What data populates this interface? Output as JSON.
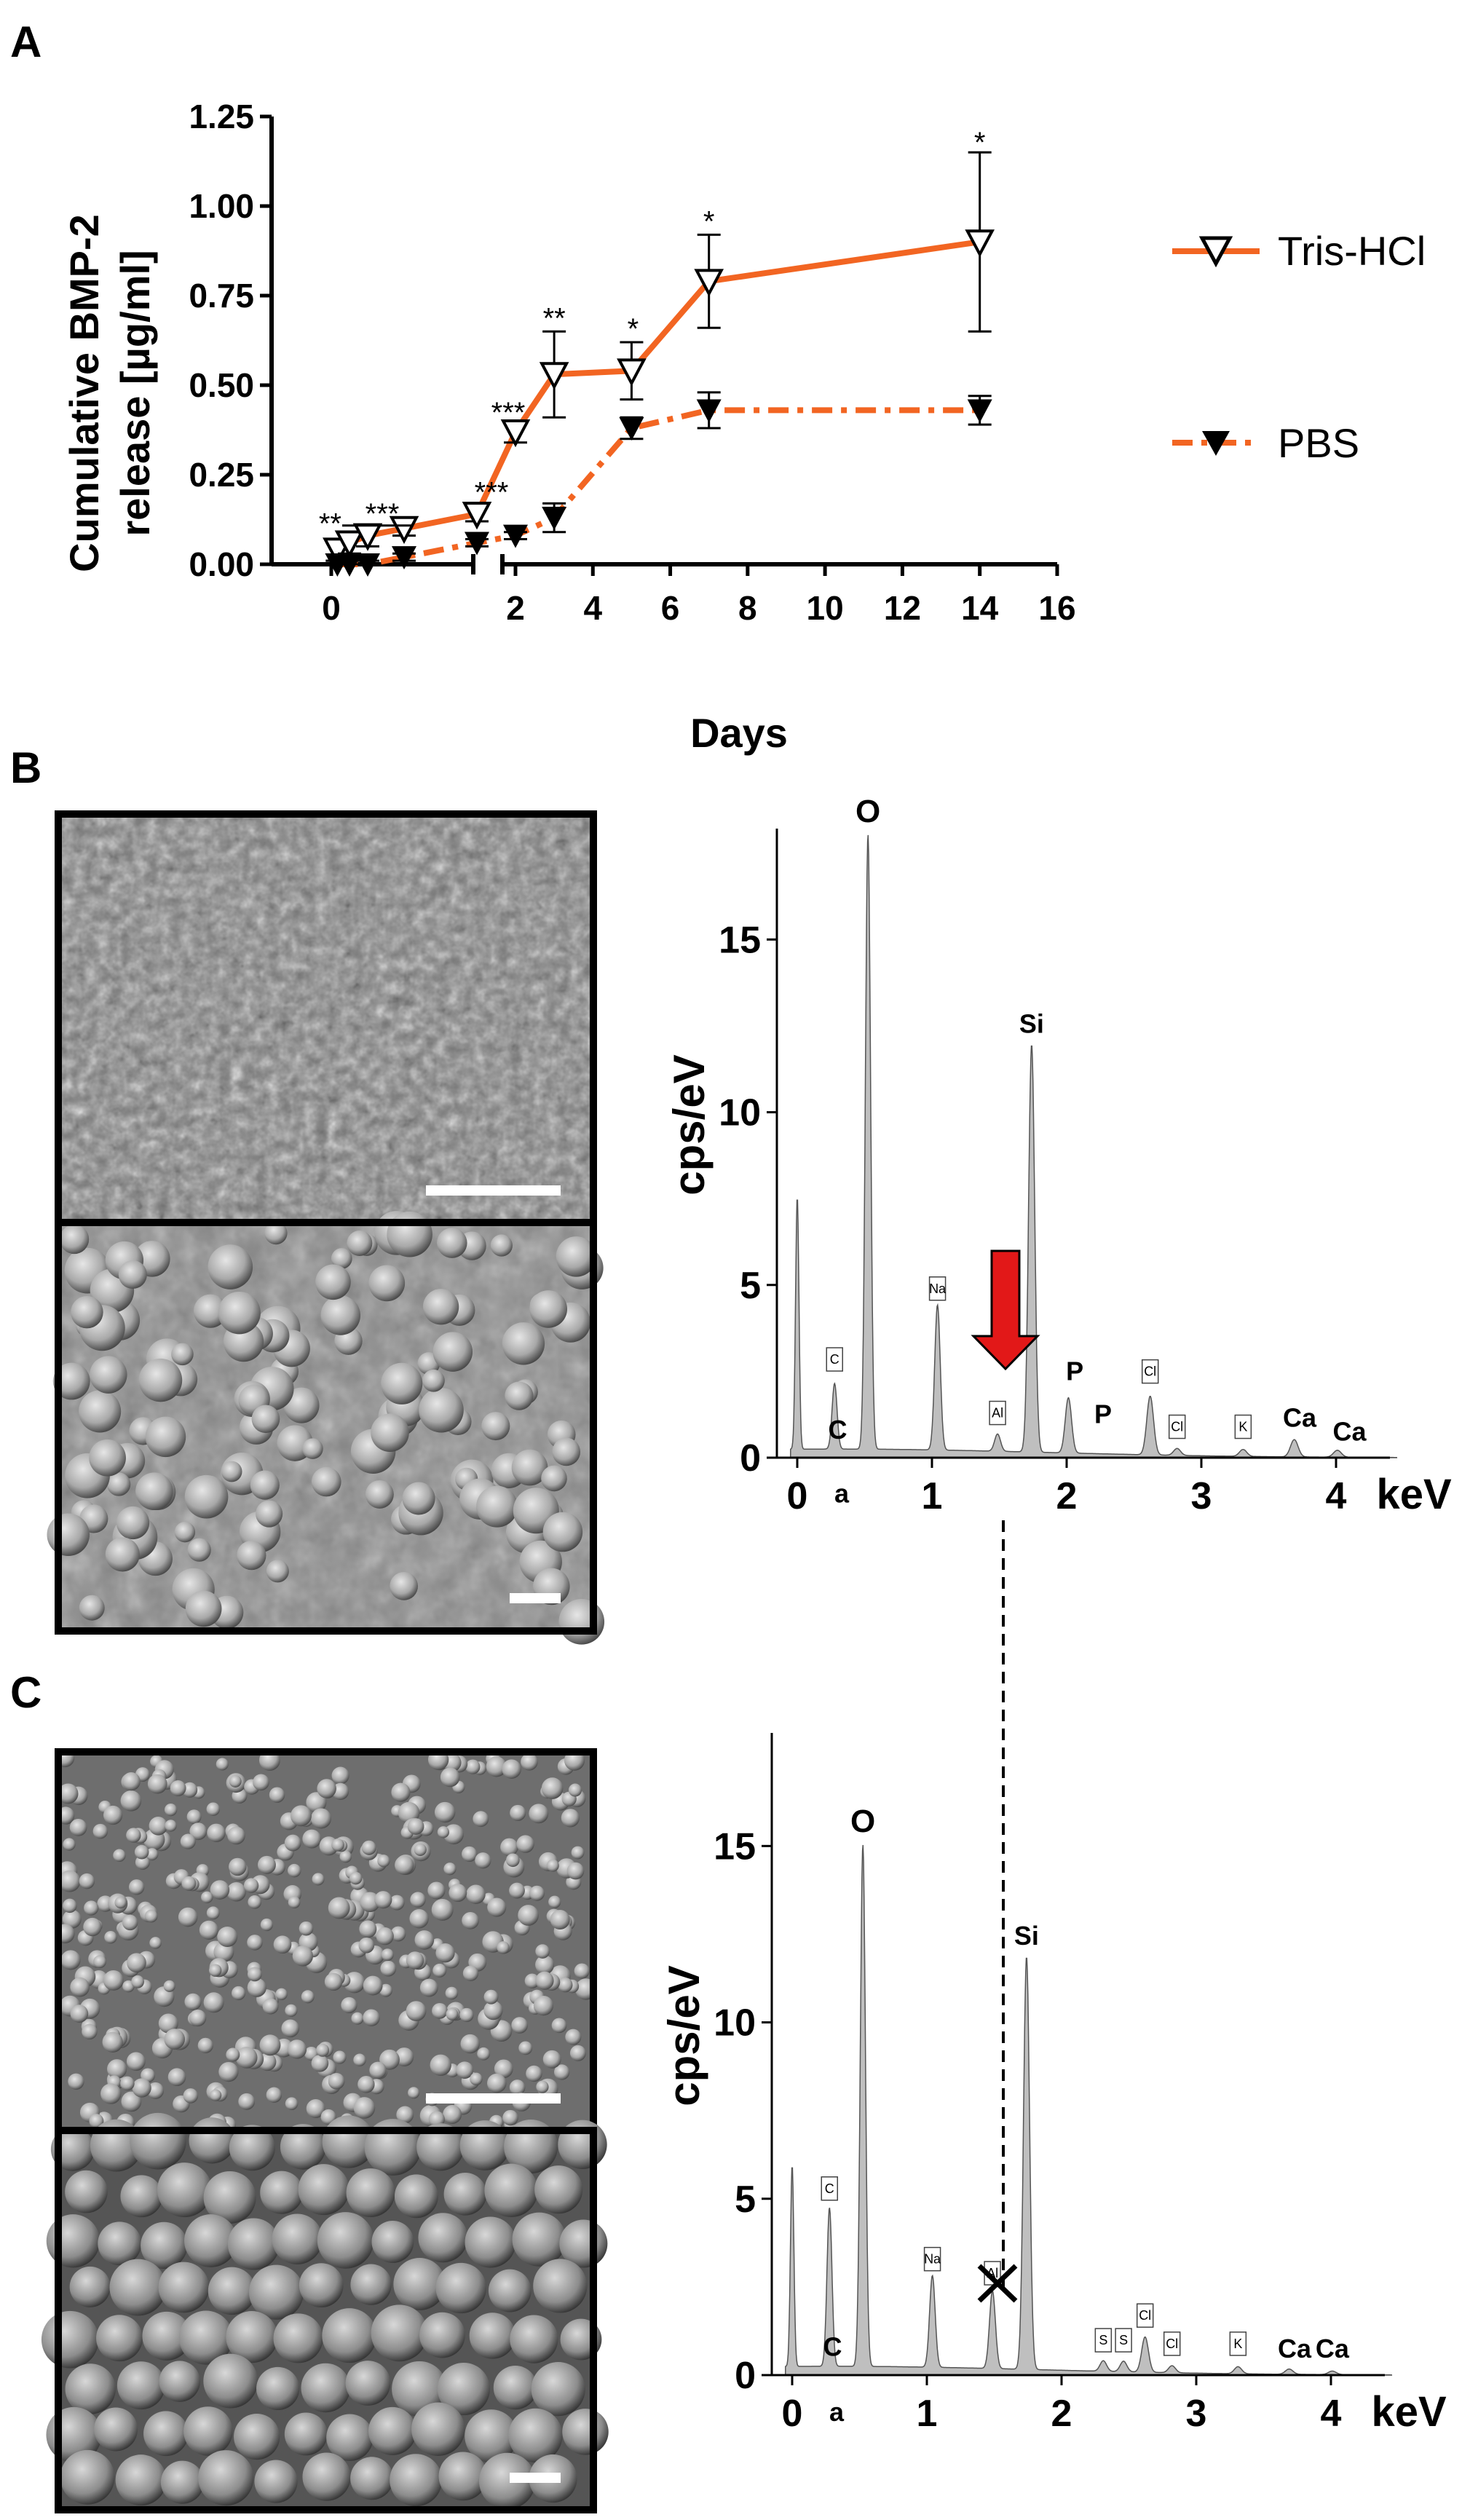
{
  "panels": {
    "a": "A",
    "b": "B",
    "c": "C"
  },
  "chart_data": [
    {
      "panel": "A",
      "type": "line",
      "xlabel": "Days",
      "ylabel_line1": "Cumulative BMP-2",
      "ylabel_line2": "release [µg/ml]",
      "x_ticks": [
        "0",
        "2",
        "4",
        "6",
        "8",
        "10",
        "12",
        "14",
        "16"
      ],
      "y_ticks": [
        "0.00",
        "0.25",
        "0.50",
        "0.75",
        "1.00",
        "1.25"
      ],
      "ylim": [
        0,
        1.25
      ],
      "xlim": [
        -0.3,
        16
      ],
      "axis_break": "between early hours and day 2",
      "series": [
        {
          "name": "Tris-HCl",
          "color": "#f26522",
          "marker": "open-triangle-down",
          "line": "solid",
          "x": [
            0.042,
            0.125,
            0.25,
            0.5,
            1.0,
            2,
            3,
            5,
            7,
            14
          ],
          "y": [
            0.04,
            0.06,
            0.08,
            0.1,
            0.14,
            0.37,
            0.53,
            0.54,
            0.79,
            0.9
          ],
          "err": [
            0.03,
            0.03,
            0.03,
            0.02,
            0.02,
            0.03,
            0.12,
            0.08,
            0.13,
            0.25
          ]
        },
        {
          "name": "PBS",
          "color": "#f26522",
          "marker": "filled-triangle-down",
          "line": "dash-dot",
          "x": [
            0.042,
            0.125,
            0.25,
            0.5,
            1.0,
            2,
            3,
            5,
            7,
            14
          ],
          "y": [
            0.0,
            0.0,
            0.0,
            0.02,
            0.06,
            0.08,
            0.13,
            0.38,
            0.43,
            0.43
          ],
          "err": [
            0.01,
            0.01,
            0.01,
            0.01,
            0.01,
            0.01,
            0.04,
            0.03,
            0.05,
            0.04
          ]
        }
      ],
      "significance": [
        "**",
        "***",
        "***",
        "***",
        "**",
        "*",
        "*",
        "*"
      ]
    },
    {
      "panel": "B",
      "type": "area",
      "xlabel": "keV",
      "ylabel": "cps/eV",
      "x_ticks": [
        "0",
        "1",
        "2",
        "3",
        "4"
      ],
      "y_ticks": [
        "0",
        "5",
        "10",
        "15"
      ],
      "xlim": [
        -0.15,
        4.5
      ],
      "ylim": [
        0,
        18
      ],
      "color": "#bfbfbf",
      "peaks": [
        {
          "keV": 0.0,
          "h": 7.3
        },
        {
          "keV": 0.277,
          "h": 1.9
        },
        {
          "keV": 0.525,
          "h": 17.8
        },
        {
          "keV": 1.041,
          "h": 4.2
        },
        {
          "keV": 1.487,
          "h": 0.5
        },
        {
          "keV": 1.74,
          "h": 11.8
        },
        {
          "keV": 2.013,
          "h": 1.6
        },
        {
          "keV": 2.62,
          "h": 1.7
        },
        {
          "keV": 2.82,
          "h": 0.2
        },
        {
          "keV": 3.31,
          "h": 0.2
        },
        {
          "keV": 3.69,
          "h": 0.5
        },
        {
          "keV": 4.01,
          "h": 0.2
        }
      ],
      "labels": {
        "O": "O",
        "Si": "Si",
        "Na": "Na",
        "C": "C",
        "Al": "Al",
        "P1": "P",
        "P2": "P",
        "Cl1": "Cl",
        "Cl2": "Cl",
        "K": "K",
        "Ca1": "Ca",
        "Ca2": "Ca",
        "Ca_low1": "C",
        "Ca_low2": "a"
      }
    },
    {
      "panel": "C",
      "type": "area",
      "xlabel": "keV",
      "ylabel": "cps/eV",
      "x_ticks": [
        "0",
        "1",
        "2",
        "3",
        "4"
      ],
      "y_ticks": [
        "0",
        "5",
        "10",
        "15"
      ],
      "xlim": [
        -0.15,
        4.5
      ],
      "ylim": [
        0,
        18
      ],
      "color": "#bfbfbf",
      "peaks": [
        {
          "keV": 0.0,
          "h": 5.7
        },
        {
          "keV": 0.277,
          "h": 4.5
        },
        {
          "keV": 0.525,
          "h": 14.8
        },
        {
          "keV": 1.041,
          "h": 2.6
        },
        {
          "keV": 1.487,
          "h": 2.2
        },
        {
          "keV": 1.74,
          "h": 11.7
        },
        {
          "keV": 2.31,
          "h": 0.3
        },
        {
          "keV": 2.46,
          "h": 0.3
        },
        {
          "keV": 2.62,
          "h": 1.0
        },
        {
          "keV": 2.82,
          "h": 0.2
        },
        {
          "keV": 3.31,
          "h": 0.2
        },
        {
          "keV": 3.69,
          "h": 0.15
        },
        {
          "keV": 4.01,
          "h": 0.1
        }
      ],
      "labels": {
        "O": "O",
        "Si": "Si",
        "Na": "Na",
        "C": "C",
        "Al": "Al",
        "S1": "S",
        "S2": "S",
        "Cl1": "Cl",
        "Cl2": "Cl",
        "K": "K",
        "Ca1": "Ca",
        "Ca2": "Ca",
        "Ca_low1": "C",
        "Ca_low2": "a"
      }
    }
  ]
}
